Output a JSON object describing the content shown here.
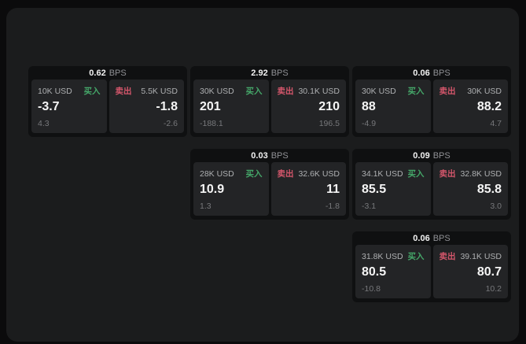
{
  "labels": {
    "buy": "买入",
    "sell": "卖出",
    "bps_unit": "BPS"
  },
  "colors": {
    "background": "#0b0b0c",
    "panel": "#1b1c1d",
    "card": "#0f1011",
    "side_panel": "#232426",
    "buy_green": "#45a769",
    "sell_red": "#d4566b",
    "value_white": "#f5f5f5",
    "muted_gray": "#77787b"
  },
  "cards": [
    {
      "bps": "0.62",
      "buy": {
        "size": "10K USD",
        "value": "-3.7",
        "delta": "4.3"
      },
      "sell": {
        "size": "5.5K USD",
        "value": "-1.8",
        "delta": "-2.6"
      }
    },
    {
      "bps": "2.92",
      "buy": {
        "size": "30K USD",
        "value": "201",
        "delta": "-188.1"
      },
      "sell": {
        "size": "30.1K USD",
        "value": "210",
        "delta": "196.5"
      }
    },
    {
      "bps": "0.06",
      "buy": {
        "size": "30K USD",
        "value": "88",
        "delta": "-4.9"
      },
      "sell": {
        "size": "30K USD",
        "value": "88.2",
        "delta": "4.7"
      }
    },
    {
      "bps": "0.03",
      "buy": {
        "size": "28K USD",
        "value": "10.9",
        "delta": "1.3"
      },
      "sell": {
        "size": "32.6K USD",
        "value": "11",
        "delta": "-1.8"
      }
    },
    {
      "bps": "0.09",
      "buy": {
        "size": "34.1K USD",
        "value": "85.5",
        "delta": "-3.1"
      },
      "sell": {
        "size": "32.8K USD",
        "value": "85.8",
        "delta": "3.0"
      }
    },
    {
      "bps": "0.06",
      "buy": {
        "size": "31.8K USD",
        "value": "80.5",
        "delta": "-10.8"
      },
      "sell": {
        "size": "39.1K USD",
        "value": "80.7",
        "delta": "10.2"
      }
    }
  ]
}
